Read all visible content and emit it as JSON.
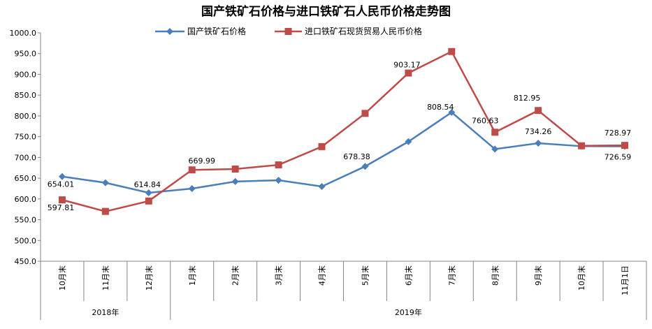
{
  "chart_data": {
    "type": "line",
    "title": "国产铁矿石价格与进口铁矿石人民币价格走势图",
    "categories": [
      "10月末",
      "11月末",
      "12月末",
      "1月末",
      "2月末",
      "3月末",
      "4月末",
      "5月末",
      "6月末",
      "7月末",
      "8月末",
      "9月末",
      "10月末",
      "11月1日"
    ],
    "groups": [
      {
        "label": "2018年",
        "span": 3
      },
      {
        "label": "2019年",
        "span": 11
      }
    ],
    "ylim": [
      450,
      1000
    ],
    "yticks": [
      "1000.0",
      "950.0",
      "900.0",
      "850.0",
      "800.0",
      "750.0",
      "700.0",
      "650.0",
      "600.0",
      "550.0",
      "500.0",
      "450.0"
    ],
    "series": [
      {
        "name": "国产铁矿石价格",
        "color": "#4a7ebb",
        "values": [
          654.01,
          639,
          614.84,
          625,
          642,
          645,
          630,
          678.38,
          738,
          808.54,
          720,
          734.26,
          727,
          726.59
        ],
        "labels": [
          "654.01",
          "",
          "614.84",
          "",
          "",
          "",
          "",
          "678.38",
          "",
          "808.54",
          "",
          "734.26",
          "",
          "726.59"
        ]
      },
      {
        "name": "进口铁矿石现货贸易人民币价格",
        "color": "#be4b48",
        "values": [
          597.81,
          570,
          595,
          669.99,
          672,
          682,
          726,
          806,
          903.17,
          955,
          760.63,
          812.95,
          728,
          728.97
        ],
        "labels": [
          "597.81",
          "",
          "",
          "669.99",
          "",
          "",
          "",
          "",
          "903.17",
          "",
          "760.63",
          "812.95",
          "",
          "728.97"
        ]
      }
    ],
    "legend": "top"
  }
}
